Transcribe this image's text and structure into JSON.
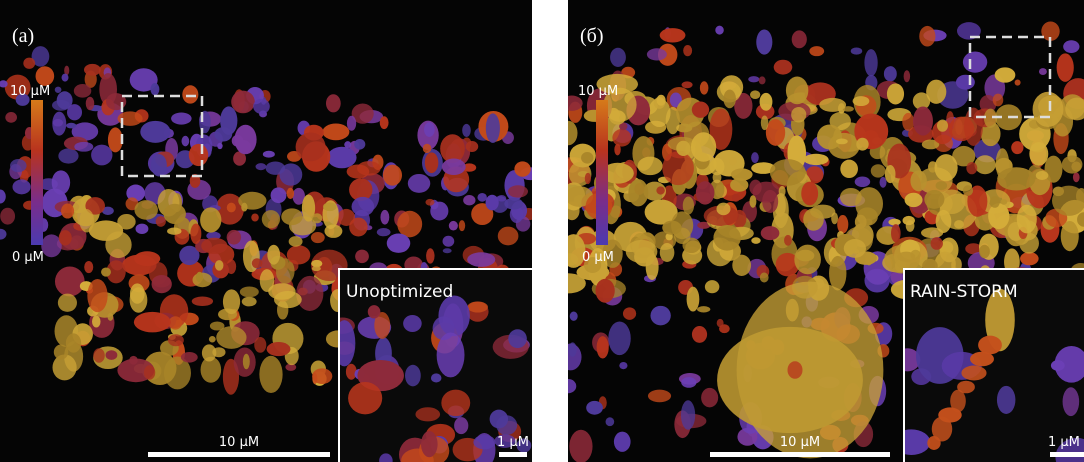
{
  "panels": [
    {
      "label": "(a)",
      "colorbar": {
        "max": "10 µM",
        "min": "0 µM"
      },
      "inset_label": "Unoptimized",
      "scale_bar": "10 µM",
      "inset_scale_bar": "1 µM"
    },
    {
      "label": "(б)",
      "colorbar": {
        "max": "10 µM",
        "min": "0 µM"
      },
      "inset_label": "RAIN-STORM",
      "scale_bar": "10 µM",
      "inset_scale_bar": "1 µM"
    }
  ]
}
